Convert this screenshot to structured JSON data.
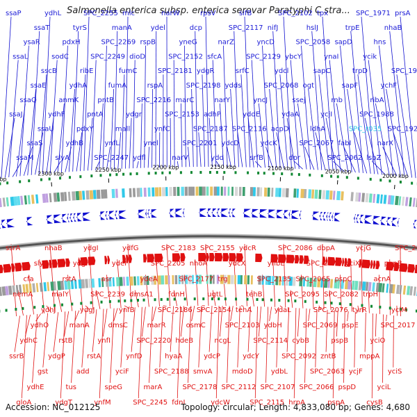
{
  "title": "Salmonella enterica subsp. enterica serovar Paratyphi C stra...",
  "footer": {
    "accession_text": "Accession: NC_012125",
    "summary_text": "Topology: circular; Length: 4,833,080 bp; Genes: 4,680"
  },
  "colors": {
    "forward": "#1010d0",
    "reverse": "#e01010",
    "highlight": "#30c8e8",
    "backbone": "#555555",
    "tick": "#000000"
  },
  "ticks": [
    {
      "label": "2000 kbp"
    },
    {
      "label": "2050 kbp"
    },
    {
      "label": "2100 kbp"
    },
    {
      "label": "2150 kbp"
    },
    {
      "label": "2200 kbp"
    },
    {
      "label": "2250 kbp"
    },
    {
      "label": "2300 kbp"
    },
    {
      "label": "2350 kbp"
    }
  ],
  "forward_genes": [
    {
      "name": "ssaP"
    },
    {
      "name": "ssaJ"
    },
    {
      "name": "ssaL"
    },
    {
      "name": "ssaM"
    },
    {
      "name": "ssaQ"
    },
    {
      "name": "ysaR"
    },
    {
      "name": "ssaS"
    },
    {
      "name": "ssaE"
    },
    {
      "name": "ssaT"
    },
    {
      "name": "ssaU"
    },
    {
      "name": "sscB"
    },
    {
      "name": "ydhL"
    },
    {
      "name": "ydhF"
    },
    {
      "name": "sodC"
    },
    {
      "name": "slyA"
    },
    {
      "name": "anmK"
    },
    {
      "name": "pdxH"
    },
    {
      "name": "ydhB"
    },
    {
      "name": "ydhA"
    },
    {
      "name": "tyrS"
    },
    {
      "name": "pdxY"
    },
    {
      "name": "ribE"
    },
    {
      "name": "SPC_2255"
    },
    {
      "name": "pntA"
    },
    {
      "name": "SPC_2249"
    },
    {
      "name": "SPC_2247"
    },
    {
      "name": "pntB"
    },
    {
      "name": "SPC_2269"
    },
    {
      "name": "ynfL"
    },
    {
      "name": "fumA"
    },
    {
      "name": "manA"
    },
    {
      "name": "mall"
    },
    {
      "name": "fumC"
    },
    {
      "name": "mlc"
    },
    {
      "name": "ydgr"
    },
    {
      "name": "dioD"
    },
    {
      "name": "ydfl"
    },
    {
      "name": "SPC_2216"
    },
    {
      "name": "rspB"
    },
    {
      "name": "ynel"
    },
    {
      "name": "rspA"
    },
    {
      "name": "ydel"
    },
    {
      "name": "ynfC"
    },
    {
      "name": "SPC_2181"
    },
    {
      "name": "narW"
    },
    {
      "name": "SPC_2153"
    },
    {
      "name": "SPC_2152"
    },
    {
      "name": "narV"
    },
    {
      "name": "marC"
    },
    {
      "name": "yneG"
    },
    {
      "name": "SPC_2201"
    },
    {
      "name": "SPC_2198"
    },
    {
      "name": "dcp"
    },
    {
      "name": "SPC_2187"
    },
    {
      "name": "ydgR"
    },
    {
      "name": "rpsV"
    },
    {
      "name": "adhP"
    },
    {
      "name": "sfcA"
    },
    {
      "name": "ydd"
    },
    {
      "name": "narY"
    },
    {
      "name": "narZ"
    },
    {
      "name": "ydcD"
    },
    {
      "name": "ydds"
    },
    {
      "name": "SPC_2117"
    },
    {
      "name": "SPC_2116"
    },
    {
      "name": "srfC"
    },
    {
      "name": "sifB"
    },
    {
      "name": "yddE"
    },
    {
      "name": "SPC_2129"
    },
    {
      "name": "srfB"
    },
    {
      "name": "yncJ"
    },
    {
      "name": "yncD"
    },
    {
      "name": "ydcK"
    },
    {
      "name": "SPC_2068"
    },
    {
      "name": "nifJ"
    },
    {
      "name": "acpD"
    },
    {
      "name": "ydcl"
    },
    {
      "name": "SPC_2102"
    },
    {
      "name": "ydaA"
    },
    {
      "name": "ybcY"
    },
    {
      "name": "dpr"
    },
    {
      "name": "ssej"
    },
    {
      "name": "SPC_2058"
    },
    {
      "name": "SPC_2067"
    },
    {
      "name": "ogt"
    },
    {
      "name": "hslJ"
    },
    {
      "name": "ldhA"
    },
    {
      "name": "sapC"
    },
    {
      "name": "tpx"
    },
    {
      "name": "ycjI"
    },
    {
      "name": "ynaI"
    },
    {
      "name": "SPC_2062"
    },
    {
      "name": "rnb"
    },
    {
      "name": "sapD"
    },
    {
      "name": "fabI"
    },
    {
      "name": "sapF"
    },
    {
      "name": "trpE"
    },
    {
      "name": "SPC_t035"
    },
    {
      "name": "trpD"
    },
    {
      "name": "SPC_1971"
    },
    {
      "name": "SPC_1988"
    },
    {
      "name": "ycik"
    },
    {
      "name": "lspZ"
    },
    {
      "name": "ribA"
    },
    {
      "name": "hns"
    },
    {
      "name": "narX"
    },
    {
      "name": "ychF"
    },
    {
      "name": "nhaB"
    },
    {
      "name": "SPC_1921"
    },
    {
      "name": "SPC_1936"
    },
    {
      "name": "prsA"
    }
  ],
  "reverse_genes": [
    {
      "name": "ssrA"
    },
    {
      "name": "ssrB"
    },
    {
      "name": "nemA"
    },
    {
      "name": "gloA"
    },
    {
      "name": "ydhC"
    },
    {
      "name": "cfa"
    },
    {
      "name": "ydhE"
    },
    {
      "name": "ydhO"
    },
    {
      "name": "slyB"
    },
    {
      "name": "gst"
    },
    {
      "name": "ydhJ"
    },
    {
      "name": "nhaB"
    },
    {
      "name": "ydgP"
    },
    {
      "name": "malY"
    },
    {
      "name": "ydgT"
    },
    {
      "name": "rstB"
    },
    {
      "name": "rstA"
    },
    {
      "name": "tus"
    },
    {
      "name": "manA"
    },
    {
      "name": "ydgH"
    },
    {
      "name": "add"
    },
    {
      "name": "ydgJ"
    },
    {
      "name": "ydgI"
    },
    {
      "name": "rstA"
    },
    {
      "name": "SPC_2239"
    },
    {
      "name": "ynfM"
    },
    {
      "name": "ynfI"
    },
    {
      "name": "asr"
    },
    {
      "name": "speG"
    },
    {
      "name": "dmsC"
    },
    {
      "name": "ydeI"
    },
    {
      "name": "yciF"
    },
    {
      "name": "ynfB"
    },
    {
      "name": "ydfG"
    },
    {
      "name": "ynfD"
    },
    {
      "name": "dmsA1"
    },
    {
      "name": "SPC_2245"
    },
    {
      "name": "SPC_2220"
    },
    {
      "name": "ydeA"
    },
    {
      "name": "marA"
    },
    {
      "name": "marR"
    },
    {
      "name": "SPC_2205"
    },
    {
      "name": "SPC_2188"
    },
    {
      "name": "SPC_2186"
    },
    {
      "name": "SPC_2183"
    },
    {
      "name": "hyaA"
    },
    {
      "name": "fdnH"
    },
    {
      "name": "fdnI"
    },
    {
      "name": "hdeB"
    },
    {
      "name": "SPC_2177"
    },
    {
      "name": "SPC_2178"
    },
    {
      "name": "osmC"
    },
    {
      "name": "nhoA"
    },
    {
      "name": "smvA"
    },
    {
      "name": "SPC_2154"
    },
    {
      "name": "SPC_2155"
    },
    {
      "name": "ydcP"
    },
    {
      "name": "ugtL"
    },
    {
      "name": "ydcW"
    },
    {
      "name": "ncgL"
    },
    {
      "name": "trg"
    },
    {
      "name": "SPC_2112"
    },
    {
      "name": "SPC_2103"
    },
    {
      "name": "ydcX"
    },
    {
      "name": "mdoD"
    },
    {
      "name": "tehA"
    },
    {
      "name": "ydcR"
    },
    {
      "name": "ydcY"
    },
    {
      "name": "tehB"
    },
    {
      "name": "SPC_2115"
    },
    {
      "name": "SPC_2114"
    },
    {
      "name": "SPC_2135"
    },
    {
      "name": "SPC_2107"
    },
    {
      "name": "ydbH"
    },
    {
      "name": "ynbE"
    },
    {
      "name": "ydbL"
    },
    {
      "name": "ydaL"
    },
    {
      "name": "SPC_2086"
    },
    {
      "name": "SPC_2092"
    },
    {
      "name": "SPC_2095"
    },
    {
      "name": "hrpA"
    },
    {
      "name": "cybB"
    },
    {
      "name": "SPC_2065"
    },
    {
      "name": "SPC_2066"
    },
    {
      "name": "SPC_2069"
    },
    {
      "name": "SPC_2071"
    },
    {
      "name": "SPC_2063"
    },
    {
      "name": "SPC_2076"
    },
    {
      "name": "dbpA"
    },
    {
      "name": "zntB"
    },
    {
      "name": "SPC_2082"
    },
    {
      "name": "pspA"
    },
    {
      "name": "pspB"
    },
    {
      "name": "pspC"
    },
    {
      "name": "pspD"
    },
    {
      "name": "pspE"
    },
    {
      "name": "yciX"
    },
    {
      "name": "ycjF"
    },
    {
      "name": "tyrR"
    },
    {
      "name": "ycjG"
    },
    {
      "name": "mppA"
    },
    {
      "name": "trpH"
    },
    {
      "name": "cysB"
    },
    {
      "name": "yciO"
    },
    {
      "name": "acnA"
    },
    {
      "name": "yciL"
    },
    {
      "name": "SPC_2017"
    },
    {
      "name": "pgpB"
    },
    {
      "name": "yciS"
    },
    {
      "name": "yciM"
    },
    {
      "name": "SPC_2035"
    }
  ]
}
